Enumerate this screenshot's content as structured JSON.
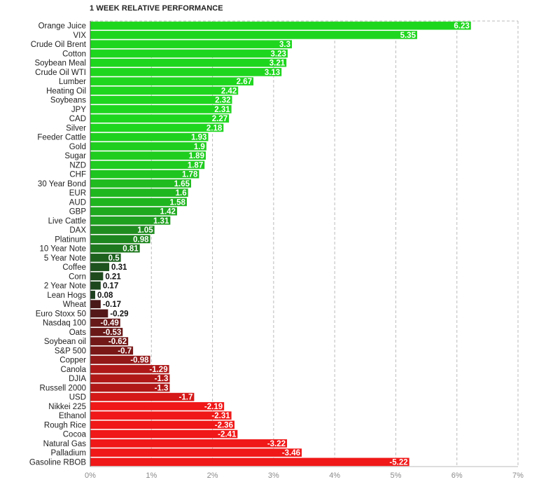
{
  "chart_data": {
    "type": "bar",
    "orientation": "horizontal",
    "title": "1 WEEK RELATIVE PERFORMANCE",
    "xlabel": "",
    "ylabel": "",
    "xlim": [
      0,
      7
    ],
    "xticks": [
      "0%",
      "1%",
      "2%",
      "3%",
      "4%",
      "5%",
      "6%",
      "7%"
    ],
    "grid": "vertical dashed",
    "categories": [
      "Orange Juice",
      "VIX",
      "Crude Oil Brent",
      "Cotton",
      "Soybean Meal",
      "Crude Oil WTI",
      "Lumber",
      "Heating Oil",
      "Soybeans",
      "JPY",
      "CAD",
      "Silver",
      "Feeder Cattle",
      "Gold",
      "Sugar",
      "NZD",
      "CHF",
      "30 Year Bond",
      "EUR",
      "AUD",
      "GBP",
      "Live Cattle",
      "DAX",
      "Platinum",
      "10 Year Note",
      "5 Year Note",
      "Coffee",
      "Corn",
      "2 Year Note",
      "Lean Hogs",
      "Wheat",
      "Euro Stoxx 50",
      "Nasdaq 100",
      "Oats",
      "Soybean oil",
      "S&P 500",
      "Copper",
      "Canola",
      "DJIA",
      "Russell 2000",
      "USD",
      "Nikkei 225",
      "Ethanol",
      "Rough Rice",
      "Cocoa",
      "Natural Gas",
      "Palladium",
      "Gasoline RBOB"
    ],
    "values": [
      6.23,
      5.35,
      3.3,
      3.23,
      3.21,
      3.13,
      2.67,
      2.42,
      2.32,
      2.31,
      2.27,
      2.18,
      1.93,
      1.9,
      1.89,
      1.87,
      1.78,
      1.65,
      1.6,
      1.58,
      1.42,
      1.31,
      1.05,
      0.98,
      0.81,
      0.5,
      0.31,
      0.21,
      0.17,
      0.08,
      -0.17,
      -0.29,
      -0.49,
      -0.53,
      -0.62,
      -0.7,
      -0.98,
      -1.29,
      -1.3,
      -1.3,
      -1.7,
      -2.19,
      -2.31,
      -2.36,
      -2.41,
      -3.22,
      -3.46,
      -5.22
    ],
    "value_labels": [
      "6.23",
      "5.35",
      "3.3",
      "3.23",
      "3.21",
      "3.13",
      "2.67",
      "2.42",
      "2.32",
      "2.31",
      "2.27",
      "2.18",
      "1.93",
      "1.9",
      "1.89",
      "1.87",
      "1.78",
      "1.65",
      "1.6",
      "1.58",
      "1.42",
      "1.31",
      "1.05",
      "0.98",
      "0.81",
      "0.5",
      "0.31",
      "0.21",
      "0.17",
      "0.08",
      "-0.17",
      "-0.29",
      "-0.49",
      "-0.53",
      "-0.62",
      "-0.7",
      "-0.98",
      "-1.29",
      "-1.3",
      "-1.3",
      "-1.7",
      "-2.19",
      "-2.31",
      "-2.36",
      "-2.41",
      "-3.22",
      "-3.46",
      "-5.22"
    ],
    "colors": {
      "positive_strong": "#1fd61f",
      "positive_weak": "#1e3a1e",
      "negative_weak": "#3a1818",
      "negative_strong": "#f01818",
      "grid": "#bbbbbb",
      "axis": "#555555"
    }
  }
}
